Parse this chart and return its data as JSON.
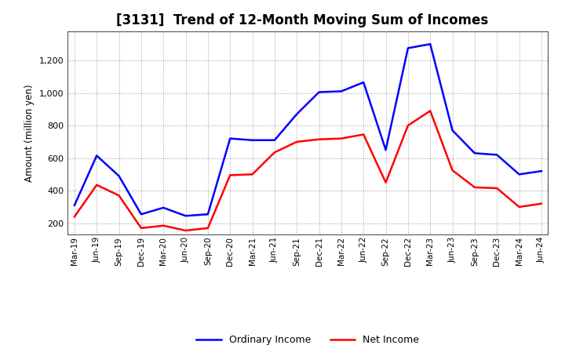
{
  "title": "[3131]  Trend of 12-Month Moving Sum of Incomes",
  "ylabel": "Amount (million yen)",
  "x_labels": [
    "Mar-19",
    "Jun-19",
    "Sep-19",
    "Dec-19",
    "Mar-20",
    "Jun-20",
    "Sep-20",
    "Dec-20",
    "Mar-21",
    "Jun-21",
    "Sep-21",
    "Dec-21",
    "Mar-22",
    "Jun-22",
    "Sep-22",
    "Dec-22",
    "Mar-23",
    "Jun-23",
    "Sep-23",
    "Dec-23",
    "Mar-24",
    "Jun-24"
  ],
  "ordinary_income": [
    310,
    615,
    490,
    255,
    295,
    245,
    255,
    720,
    710,
    710,
    870,
    1005,
    1010,
    1065,
    650,
    1275,
    1300,
    770,
    630,
    620,
    500,
    520
  ],
  "net_income": [
    240,
    435,
    370,
    170,
    185,
    155,
    170,
    495,
    500,
    635,
    700,
    715,
    720,
    745,
    450,
    800,
    890,
    525,
    420,
    415,
    300,
    320
  ],
  "ordinary_color": "#0000ff",
  "net_color": "#ff0000",
  "ylim": [
    130,
    1380
  ],
  "yticks": [
    200,
    400,
    600,
    800,
    1000,
    1200
  ],
  "background_color": "#ffffff",
  "plot_bg_color": "#ffffff",
  "grid_color": "#999999",
  "title_fontsize": 12,
  "legend_labels": [
    "Ordinary Income",
    "Net Income"
  ]
}
